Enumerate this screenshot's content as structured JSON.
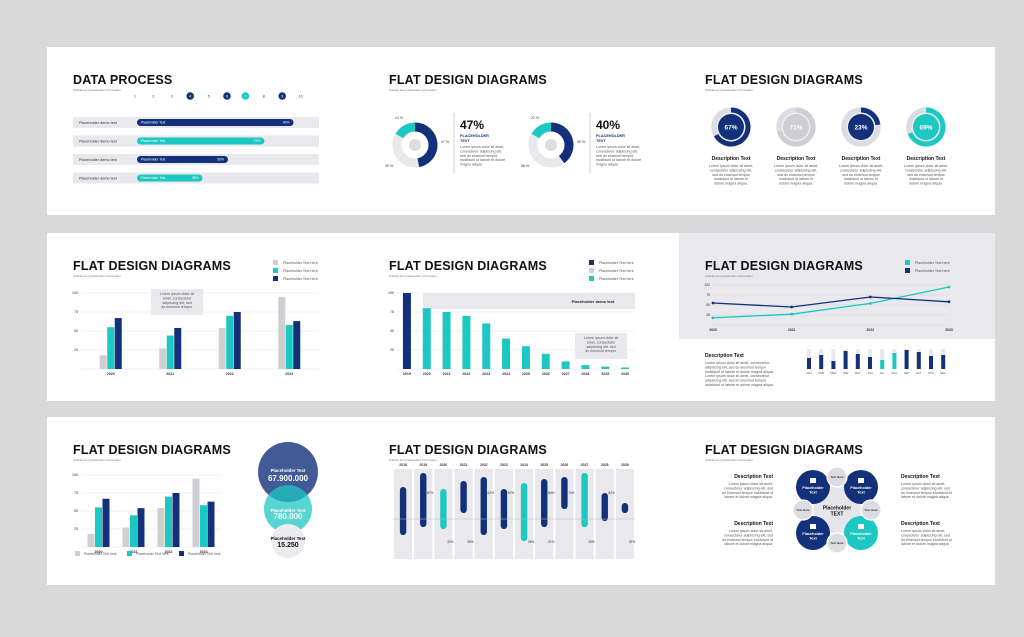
{
  "colors": {
    "navy": "#13317a",
    "teal": "#1dc7c2",
    "gray": "#cfcfd3",
    "light": "#e8e8ed",
    "bg": "#d9d9d9"
  },
  "slides": [
    {
      "title": "DATA PROCESS",
      "subtitle": "Subtitle text placeholder information",
      "steps": [
        "1",
        "2",
        "3",
        "4",
        "5",
        "6",
        "7",
        "8",
        "9",
        "10"
      ],
      "rows": [
        {
          "label": "Placeholder demo text",
          "bar": "Placeholder Text",
          "pct": "90%"
        },
        {
          "label": "Placeholder demo text",
          "bar": "Placeholder Text",
          "pct": "70%"
        },
        {
          "label": "Placeholder demo text",
          "bar": "Placeholder Text",
          "pct": "50%"
        },
        {
          "label": "Placeholder demo text",
          "bar": "Placeholder Text",
          "pct": "35%"
        }
      ]
    },
    {
      "title": "FLAT DESIGN DIAGRAMS",
      "subtitle": "Subtitle text placeholder information",
      "donuts": [
        {
          "pct": "47%",
          "a": "14 %",
          "b": "47 %",
          "c": "39 %",
          "label": "PLACEHOLDER TEXT",
          "body": "Lorem ipsum dolor sit amet, consectetur adipiscing elit, sed do eiusmod tempor incididunt ut labore et dolore magna aliqua."
        },
        {
          "pct": "40%",
          "a": "22 %",
          "b": "40 %",
          "c": "38 %",
          "label": "PLACEHOLDER TEXT",
          "body": "Lorem ipsum dolor sit amet, consectetur adipiscing elit, sed do eiusmod tempor incididunt ut labore et dolore magna aliqua."
        }
      ]
    },
    {
      "title": "FLAT DESIGN DIAGRAMS",
      "subtitle": "Subtitle text placeholder information",
      "rings": [
        {
          "pct": "67%",
          "label": "Description Text",
          "body": "Lorem ipsum dolor sit amet, consectetur adipiscing elit, sed do eiusmod tempor incididunt ut labore et dolore magna aliqua."
        },
        {
          "pct": "71%",
          "label": "Description Text",
          "body": "Lorem ipsum dolor sit amet, consectetur adipiscing elit, sed do eiusmod tempor incididunt ut labore et dolore magna aliqua."
        },
        {
          "pct": "23%",
          "label": "Description Text",
          "body": "Lorem ipsum dolor sit amet, consectetur adipiscing elit, sed do eiusmod tempor incididunt ut labore et dolore magna aliqua."
        },
        {
          "pct": "69%",
          "label": "Description Text",
          "body": "Lorem ipsum dolor sit amet, consectetur adipiscing elit, sed do eiusmod tempor incididunt ut labore et dolore magna aliqua."
        }
      ]
    },
    {
      "title": "FLAT DESIGN DIAGRAMS",
      "subtitle": "Subtitle text placeholder information",
      "legend": [
        "Placeholder Text here",
        "Placeholder Text here",
        "Placeholder Text here"
      ],
      "callout": "Lorem ipsum dolor sit amet, consectetur adipiscing elit, sed do eiusmod tempor.",
      "yticks": [
        "100",
        "75",
        "50",
        "25"
      ]
    },
    {
      "title": "FLAT DESIGN DIAGRAMS",
      "subtitle": "Subtitle text placeholder information",
      "legend": [
        "Placeholder Text here",
        "Placeholder Text here",
        "Placeholder Text here"
      ],
      "banner": "Placeholder demo text",
      "callout": "Lorem ipsum dolor sit amet, consectetur adipiscing elit, sed do eiusmod tempor.",
      "yticks": [
        "100",
        "75",
        "50",
        "25"
      ]
    },
    {
      "title": "FLAT DESIGN DIAGRAMS",
      "subtitle": "Subtitle text placeholder information",
      "legend": [
        "Placeholder Text here",
        "Placeholder Text here"
      ],
      "yticks": [
        "100",
        "75",
        "50",
        "25"
      ],
      "desc_label": "Description Text",
      "desc_body": "Lorem ipsum dolor sit amet, consectetur adipiscing elit, sed do eiusmod tempor incididunt ut labore et dolore magna aliqua. Lorem ipsum dolor sit amet, consectetur adipiscing elit, sed do eiusmod tempor incididunt ut labore et dolore magna aliqua.",
      "months": [
        "JAN",
        "FEB",
        "MAR",
        "APR",
        "MAY",
        "JUN",
        "JUL",
        "AUG",
        "SEP",
        "OCT",
        "NOV",
        "DEC"
      ]
    },
    {
      "title": "FLAT DESIGN DIAGRAMS",
      "subtitle": "Subtitle text placeholder information",
      "yticks": [
        "100",
        "75",
        "50",
        "25"
      ],
      "legend": [
        "Placeholder Text here",
        "Placeholder Text here",
        "Placeholder Text here"
      ],
      "bubbles": [
        {
          "label": "Placeholder Text",
          "value": "67.900.000"
        },
        {
          "label": "Placeholder Text",
          "value": "780.000"
        },
        {
          "label": "Placeholder Text",
          "value": "15.250"
        }
      ]
    },
    {
      "title": "FLAT DESIGN DIAGRAMS",
      "subtitle": "Subtitle text placeholder information",
      "years": [
        "2018",
        "2019",
        "2020",
        "2021",
        "2022",
        "2023",
        "2024",
        "2025",
        "2026",
        "2027",
        "2028",
        "2029"
      ],
      "pcts_top": [
        "87%",
        "62%",
        "67%",
        "84%",
        "74%",
        "82%"
      ],
      "pcts_bot": [
        "32%",
        "35%",
        "28%",
        "21%",
        "25%",
        "29%"
      ]
    },
    {
      "title": "FLAT DESIGN DIAGRAMS",
      "subtitle": "Subtitle text placeholder information",
      "center": "Placeholder TEXT",
      "quads": [
        {
          "label": "Placeholder Text"
        },
        {
          "label": "Placeholder Text"
        },
        {
          "label": "Placeholder Text"
        },
        {
          "label": "Placeholder Text"
        }
      ],
      "small": [
        "Text Here",
        "Text Here",
        "Text Here",
        "Text Here"
      ],
      "descs": [
        {
          "label": "Description Text",
          "body": "Lorem ipsum dolor sit amet, consectetur adipiscing elit, sed do eiusmod tempor incididunt ut labore et dolore magna aliqua."
        },
        {
          "label": "Description Text",
          "body": "Lorem ipsum dolor sit amet, consectetur adipiscing elit, sed do eiusmod tempor incididunt ut labore et dolore magna aliqua."
        },
        {
          "label": "Description Text",
          "body": "Lorem ipsum dolor sit amet, consectetur adipiscing elit, sed do eiusmod tempor incididunt ut labore et dolore magna aliqua."
        },
        {
          "label": "Description Text",
          "body": "Lorem ipsum dolor sit amet, consectetur adipiscing elit, sed do eiusmod tempor incididunt ut labore et dolore magna aliqua."
        }
      ]
    }
  ],
  "chart_data": [
    {
      "type": "bar",
      "title": "FLAT DESIGN DIAGRAMS",
      "categories": [
        "2020",
        "2021",
        "2022",
        "2023"
      ],
      "series": [
        {
          "name": "Placeholder Text here",
          "values": [
            18,
            27,
            54,
            95
          ]
        },
        {
          "name": "Placeholder Text here",
          "values": [
            55,
            44,
            70,
            58
          ]
        },
        {
          "name": "Placeholder Text here",
          "values": [
            67,
            54,
            75,
            63
          ]
        }
      ],
      "ylim": [
        0,
        100
      ]
    },
    {
      "type": "bar",
      "title": "FLAT DESIGN DIAGRAMS",
      "categories": [
        "2019",
        "2020",
        "2021",
        "2022",
        "2023",
        "2024",
        "2025",
        "2026",
        "2027",
        "2028",
        "2029",
        "2030"
      ],
      "values": [
        100,
        80,
        75,
        70,
        60,
        40,
        30,
        20,
        10,
        5,
        3,
        2
      ],
      "ylim": [
        0,
        100
      ]
    },
    {
      "type": "line",
      "title": "FLAT DESIGN DIAGRAMS",
      "x": [
        "2020",
        "2021",
        "2022",
        "2023"
      ],
      "series": [
        {
          "name": "Placeholder Text here",
          "values": [
            18,
            27,
            54,
            95
          ]
        },
        {
          "name": "Placeholder Text here",
          "values": [
            55,
            45,
            70,
            58
          ]
        }
      ],
      "ylim": [
        0,
        100
      ]
    },
    {
      "type": "bar",
      "title": "FLAT DESIGN DIAGRAMS",
      "categories": [
        "2020",
        "2021",
        "2022",
        "2023"
      ],
      "series": [
        {
          "name": "Placeholder Text here",
          "values": [
            18,
            27,
            54,
            95
          ]
        },
        {
          "name": "Placeholder Text here",
          "values": [
            55,
            44,
            70,
            58
          ]
        },
        {
          "name": "Placeholder Text here",
          "values": [
            67,
            54,
            75,
            63
          ]
        }
      ],
      "ylim": [
        0,
        100
      ]
    }
  ]
}
